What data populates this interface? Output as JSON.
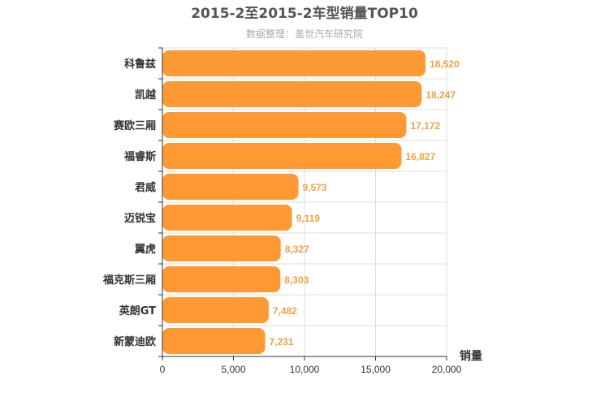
{
  "chart_data": {
    "type": "bar",
    "orientation": "horizontal",
    "title": "2015-2至2015-2车型销量TOP10",
    "subtitle": "数据整理：盖世汽车研究院",
    "categories": [
      "科鲁兹",
      "凯越",
      "赛欧三厢",
      "福睿斯",
      "君威",
      "迈锐宝",
      "翼虎",
      "福克斯三厢",
      "英朗GT",
      "新蒙迪欧"
    ],
    "values": [
      18520,
      18247,
      17172,
      16827,
      9573,
      9119,
      8327,
      8303,
      7482,
      7231
    ],
    "value_labels": [
      "18,520",
      "18,247",
      "17,172",
      "16,827",
      "9,573",
      "9,119",
      "8,327",
      "8,303",
      "7,482",
      "7,231"
    ],
    "xlabel": "销量",
    "ylabel": "",
    "xlim": [
      0,
      20000
    ],
    "xticks": [
      0,
      5000,
      10000,
      15000,
      20000
    ],
    "xtick_labels": [
      "0",
      "5,000",
      "10,000",
      "15,000",
      "20,000"
    ],
    "grid": true,
    "bar_color": "#ff9933",
    "label_color": "#f0a040"
  }
}
